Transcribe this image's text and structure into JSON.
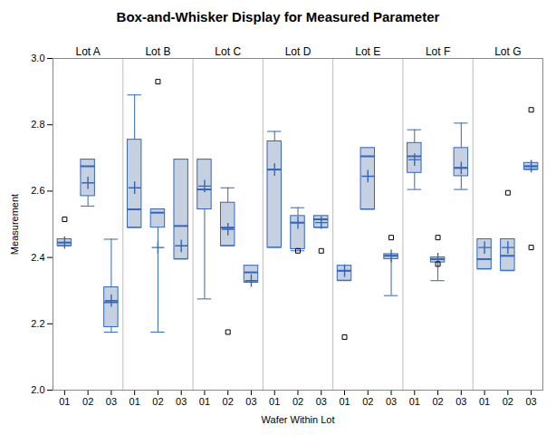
{
  "chart_data": {
    "type": "box",
    "title": "Box-and-Whisker Display for Measured Parameter",
    "x_label": "Wafer Within Lot",
    "y_label": "Measurement",
    "categories": [
      "01",
      "02",
      "03",
      "01",
      "02",
      "03",
      "01",
      "02",
      "03",
      "01",
      "02",
      "03",
      "01",
      "02",
      "03",
      "01",
      "02",
      "03",
      "01",
      "02",
      "03"
    ],
    "groups": [
      "Lot A",
      "Lot B",
      "Lot C",
      "Lot D",
      "Lot E",
      "Lot F",
      "Lot G"
    ],
    "boxes": [
      {
        "group": "Lot A",
        "q1": 2.435,
        "median": 2.445,
        "q3": 2.455,
        "mean": 2.445,
        "whislo": 2.435,
        "whishi": 2.455,
        "fliers": [
          2.515
        ]
      },
      {
        "group": "Lot A",
        "q1": 2.585,
        "median": 2.675,
        "q3": 2.695,
        "mean": 2.625,
        "whislo": 2.555,
        "whishi": 2.695,
        "fliers": []
      },
      {
        "group": "Lot A",
        "q1": 2.19,
        "median": 2.265,
        "q3": 2.31,
        "mean": 2.27,
        "whislo": 2.175,
        "whishi": 2.455,
        "fliers": []
      },
      {
        "group": "Lot B",
        "q1": 2.49,
        "median": 2.545,
        "q3": 2.755,
        "mean": 2.61,
        "whislo": 2.49,
        "whishi": 2.89,
        "fliers": []
      },
      {
        "group": "Lot B",
        "q1": 2.49,
        "median": 2.535,
        "q3": 2.545,
        "mean": 2.43,
        "whislo": 2.175,
        "whishi": 2.545,
        "fliers": [
          2.93
        ]
      },
      {
        "group": "Lot B",
        "q1": 2.395,
        "median": 2.495,
        "q3": 2.695,
        "mean": 2.435,
        "whislo": 2.395,
        "whishi": 2.695,
        "fliers": []
      },
      {
        "group": "Lot C",
        "q1": 2.545,
        "median": 2.605,
        "q3": 2.695,
        "mean": 2.615,
        "whislo": 2.275,
        "whishi": 2.695,
        "fliers": []
      },
      {
        "group": "Lot C",
        "q1": 2.435,
        "median": 2.49,
        "q3": 2.565,
        "mean": 2.485,
        "whislo": 2.435,
        "whishi": 2.61,
        "fliers": [
          2.175
        ]
      },
      {
        "group": "Lot C",
        "q1": 2.325,
        "median": 2.355,
        "q3": 2.375,
        "mean": 2.33,
        "whislo": 2.325,
        "whishi": 2.375,
        "fliers": []
      },
      {
        "group": "Lot D",
        "q1": 2.43,
        "median": 2.665,
        "q3": 2.75,
        "mean": 2.665,
        "whislo": 2.43,
        "whishi": 2.78,
        "fliers": []
      },
      {
        "group": "Lot D",
        "q1": 2.425,
        "median": 2.505,
        "q3": 2.525,
        "mean": 2.505,
        "whislo": 2.42,
        "whishi": 2.55,
        "fliers": [
          2.42
        ]
      },
      {
        "group": "Lot D",
        "q1": 2.49,
        "median": 2.515,
        "q3": 2.525,
        "mean": 2.505,
        "whislo": 2.49,
        "whishi": 2.525,
        "fliers": [
          2.42
        ]
      },
      {
        "group": "Lot E",
        "q1": 2.33,
        "median": 2.36,
        "q3": 2.375,
        "mean": 2.36,
        "whislo": 2.33,
        "whishi": 2.375,
        "fliers": [
          2.16
        ]
      },
      {
        "group": "Lot E",
        "q1": 2.545,
        "median": 2.705,
        "q3": 2.73,
        "mean": 2.645,
        "whislo": 2.545,
        "whishi": 2.73,
        "fliers": []
      },
      {
        "group": "Lot E",
        "q1": 2.395,
        "median": 2.405,
        "q3": 2.41,
        "mean": 2.405,
        "whislo": 2.285,
        "whishi": 2.41,
        "fliers": [
          2.46
        ]
      },
      {
        "group": "Lot F",
        "q1": 2.655,
        "median": 2.705,
        "q3": 2.745,
        "mean": 2.695,
        "whislo": 2.605,
        "whishi": 2.785,
        "fliers": []
      },
      {
        "group": "Lot F",
        "q1": 2.385,
        "median": 2.395,
        "q3": 2.4,
        "mean": 2.395,
        "whislo": 2.33,
        "whishi": 2.4,
        "fliers": [
          2.38,
          2.46
        ]
      },
      {
        "group": "Lot F",
        "q1": 2.645,
        "median": 2.67,
        "q3": 2.73,
        "mean": 2.67,
        "whislo": 2.605,
        "whishi": 2.805,
        "fliers": []
      },
      {
        "group": "Lot G",
        "q1": 2.365,
        "median": 2.395,
        "q3": 2.455,
        "mean": 2.43,
        "whislo": 2.365,
        "whishi": 2.455,
        "fliers": []
      },
      {
        "group": "Lot G",
        "q1": 2.36,
        "median": 2.405,
        "q3": 2.455,
        "mean": 2.43,
        "whislo": 2.36,
        "whishi": 2.455,
        "fliers": [
          2.595
        ]
      },
      {
        "group": "Lot G",
        "q1": 2.665,
        "median": 2.675,
        "q3": 2.685,
        "mean": 2.675,
        "whislo": 2.665,
        "whishi": 2.685,
        "fliers": [
          2.845,
          2.43
        ]
      }
    ],
    "ylim": [
      2.0,
      3.0
    ],
    "yticks": [
      {
        "value": 2.0,
        "label": "2.0"
      },
      2.2,
      2.4,
      2.6,
      2.8,
      {
        "value": 3.0,
        "label": "3.0"
      }
    ],
    "grid": false,
    "color": "#3366bb",
    "box_color": "#c5d0e0",
    "outlier_color": "#000000"
  }
}
